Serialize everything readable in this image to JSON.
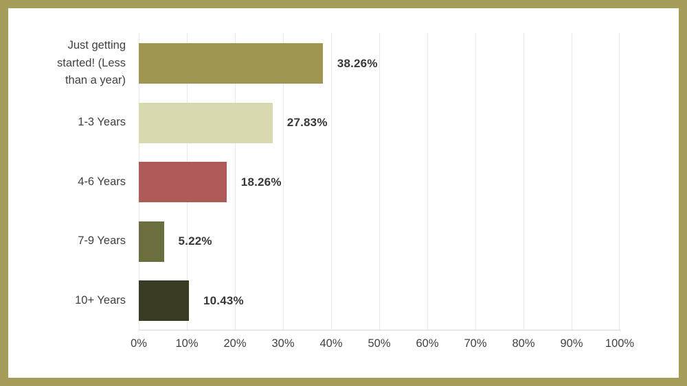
{
  "frame": {
    "border_color": "#a49c58",
    "background_color": "#ffffff"
  },
  "chart_data": {
    "type": "bar",
    "orientation": "horizontal",
    "title": "",
    "xlabel": "",
    "ylabel": "",
    "xlim": [
      0,
      100
    ],
    "grid": true,
    "legend": false,
    "categories": [
      "Just getting started! (Less than a year)",
      "1-3 Years",
      "4-6 Years",
      "7-9 Years",
      "10+ Years"
    ],
    "values": [
      38.26,
      27.83,
      18.26,
      5.22,
      10.43
    ],
    "value_labels": [
      "38.26%",
      "27.83%",
      "18.26%",
      "5.22%",
      "10.43%"
    ],
    "bar_colors": [
      "#9e9650",
      "#d7d9b1",
      "#ad5a58",
      "#6b6f3e",
      "#393c23"
    ],
    "x_ticks": [
      "0%",
      "10%",
      "20%",
      "30%",
      "40%",
      "50%",
      "60%",
      "70%",
      "80%",
      "90%",
      "100%"
    ],
    "x_tick_values": [
      0,
      10,
      20,
      30,
      40,
      50,
      60,
      70,
      80,
      90,
      100
    ],
    "gridline_color": "#e9e9e9",
    "axis_line_color": "#d7d7d7",
    "category_label_color": "#414141",
    "value_label_color": "#383838"
  }
}
